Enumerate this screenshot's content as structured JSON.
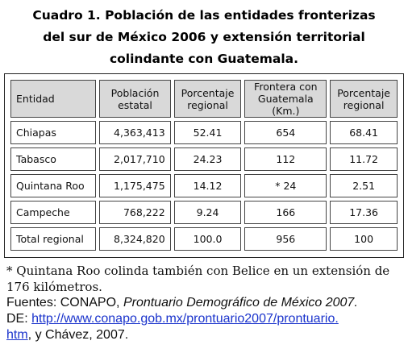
{
  "title": {
    "line1": "Cuadro 1. Población de las entidades fronterizas",
    "line2": "del sur de México 2006 y extensión territorial",
    "line3": "colindante con  Guatemala."
  },
  "table": {
    "headers": [
      "Entidad",
      "Población estatal",
      "Porcentaje regional",
      "Frontera con Guatemala (Km.)",
      "Porcentaje regional"
    ],
    "rows": [
      [
        "Chiapas",
        "4,363,413",
        "52.41",
        "654",
        "68.41"
      ],
      [
        "Tabasco",
        "2,017,710",
        "24.23",
        "112",
        "11.72"
      ],
      [
        "Quintana Roo",
        "1,175,475",
        "14.12",
        "* 24",
        "2.51"
      ],
      [
        "Campeche",
        "768,222",
        "9.24",
        "166",
        "17.36"
      ],
      [
        "Total regional",
        "8,324,820",
        "100.0",
        "956",
        "100"
      ]
    ]
  },
  "notes": {
    "footnote_line1": "* Quintana Roo colinda también con Belice en un extensión de",
    "footnote_line2": "176 kilómetros.",
    "sources_prefix": "Fuentes: CONAPO, ",
    "sources_italic": "Prontuario Demográfico de México 2007.",
    "de_prefix": "DE: ",
    "link_line1": "http://www.conapo.gob.mx/prontuario2007/prontuario.",
    "link_line2": "htm",
    "suffix": ", y Chávez, 2007."
  }
}
